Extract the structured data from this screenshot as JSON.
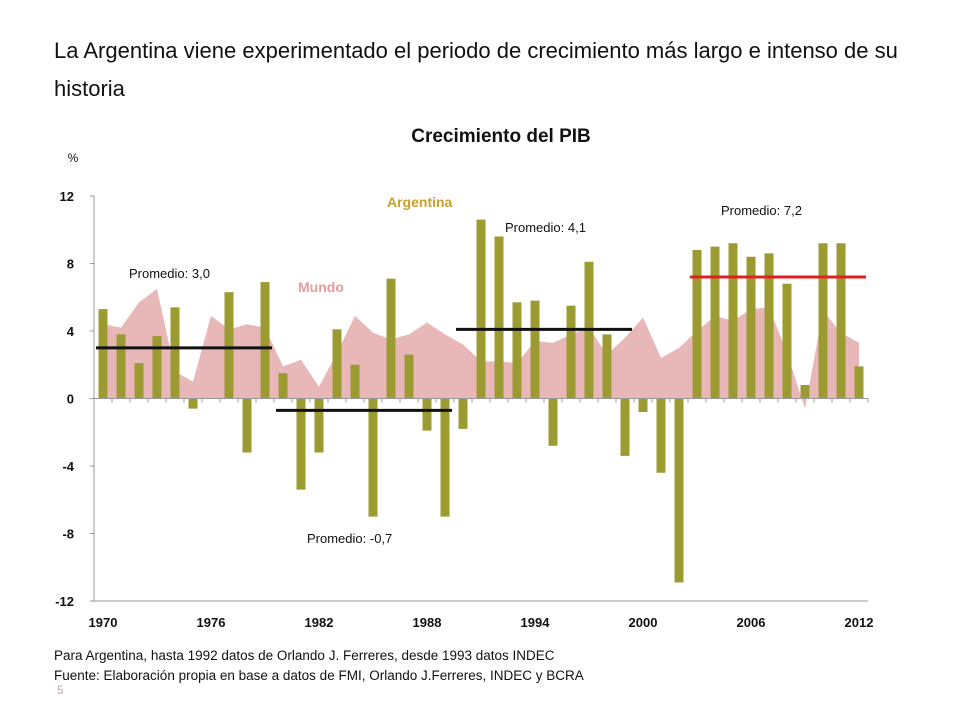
{
  "slide": {
    "title": "La Argentina viene experimentado el periodo de crecimiento más largo e intenso de su historia",
    "note": "Para Argentina, hasta 1992 datos de Orlando J. Ferreres, desde 1993 datos INDEC",
    "source": "Fuente: Elaboración propia en base a datos de FMI, Orlando J.Ferreres, INDEC y BCRA",
    "page_number": "5"
  },
  "chart_data": {
    "type": "bar",
    "title": "Crecimiento del PIB",
    "ylabel": "%",
    "ylim": [
      -12,
      12
    ],
    "yticks": [
      12,
      8,
      4,
      0,
      -4,
      -8,
      -12
    ],
    "xticks": [
      1970,
      1976,
      1982,
      1988,
      1994,
      2000,
      2006,
      2012
    ],
    "x": [
      1970,
      1971,
      1972,
      1973,
      1974,
      1975,
      1976,
      1977,
      1978,
      1979,
      1980,
      1981,
      1982,
      1983,
      1984,
      1985,
      1986,
      1987,
      1988,
      1989,
      1990,
      1991,
      1992,
      1993,
      1994,
      1995,
      1996,
      1997,
      1998,
      1999,
      2000,
      2001,
      2002,
      2003,
      2004,
      2005,
      2006,
      2007,
      2008,
      2009,
      2010,
      2011,
      2012
    ],
    "series": [
      {
        "name": "Argentina",
        "kind": "bar",
        "color": "#9b9b32",
        "values": [
          5.3,
          3.8,
          2.1,
          3.7,
          5.4,
          -0.6,
          0.0,
          6.3,
          -3.2,
          6.9,
          1.5,
          -5.4,
          -3.2,
          4.1,
          2.0,
          -7.0,
          7.1,
          2.6,
          -1.9,
          -7.0,
          -1.8,
          10.6,
          9.6,
          5.7,
          5.8,
          -2.8,
          5.5,
          8.1,
          3.8,
          -3.4,
          -0.8,
          -4.4,
          -10.9,
          8.8,
          9.0,
          9.2,
          8.4,
          8.6,
          6.8,
          0.8,
          9.2,
          9.2,
          1.9
        ]
      },
      {
        "name": "Mundo",
        "kind": "area",
        "color": "#e8b7b7",
        "values": [
          4.4,
          4.2,
          5.7,
          6.5,
          1.6,
          1.0,
          4.9,
          4.1,
          4.4,
          4.2,
          1.9,
          2.3,
          0.7,
          2.7,
          4.9,
          3.9,
          3.5,
          3.8,
          4.5,
          3.8,
          3.2,
          2.2,
          2.2,
          2.1,
          3.4,
          3.3,
          3.8,
          4.2,
          2.6,
          3.6,
          4.8,
          2.4,
          3.0,
          4.0,
          4.9,
          4.6,
          5.3,
          5.4,
          2.7,
          -0.6,
          5.2,
          3.9,
          3.3
        ]
      }
    ],
    "averages": [
      {
        "label": "Promedio: 3,0",
        "value": 3.0,
        "from": 1970,
        "to": 1979,
        "color": "#111111"
      },
      {
        "label": "Promedio: -0,7",
        "value": -0.7,
        "from": 1980,
        "to": 1989,
        "color": "#111111"
      },
      {
        "label": "Promedio: 4,1",
        "value": 4.1,
        "from": 1990,
        "to": 1999,
        "color": "#111111"
      },
      {
        "label": "Promedio: 7,2",
        "value": 7.2,
        "from": 2003,
        "to": 2012,
        "color": "#e02020"
      }
    ],
    "series_labels": [
      {
        "text": "Argentina",
        "color": "#c9a227"
      },
      {
        "text": "Mundo",
        "color": "#e89a9a"
      }
    ],
    "grid": false,
    "legend": "inline"
  }
}
